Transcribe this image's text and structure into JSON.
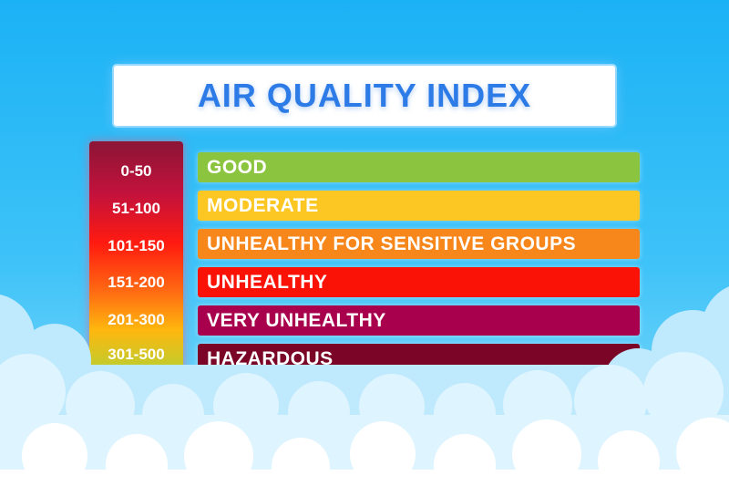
{
  "title": "AIR QUALITY INDEX",
  "colors": {
    "sky": "#2bb8f6",
    "title_text": "#2d7be6",
    "good": "#8bc53f",
    "moderate": "#fcc722",
    "unhealthy_sensitive": "#f7861b",
    "unhealthy": "#fa1207",
    "very_unhealthy": "#a8004d",
    "hazardous": "#7a0526"
  },
  "levels": [
    {
      "range": "0-50",
      "label": "GOOD",
      "color": "#8bc53f"
    },
    {
      "range": "51-100",
      "label": "MODERATE",
      "color": "#fcc722"
    },
    {
      "range": "101-150",
      "label": "UNHEALTHY FOR SENSITIVE GROUPS",
      "color": "#f7861b"
    },
    {
      "range": "151-200",
      "label": "UNHEALTHY",
      "color": "#fa1207"
    },
    {
      "range": "201-300",
      "label": "VERY UNHEALTHY",
      "color": "#a8004d"
    },
    {
      "range": "301-500",
      "label": "HAZARDOUS",
      "color": "#7a0526"
    }
  ]
}
